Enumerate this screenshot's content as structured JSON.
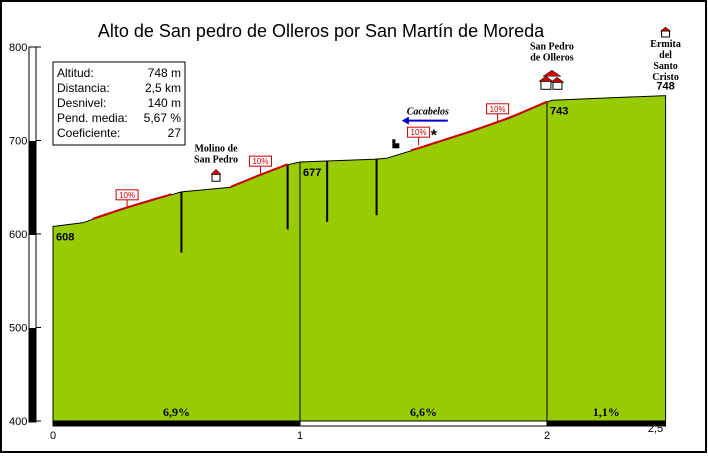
{
  "chart_data": {
    "type": "area",
    "title": "Alto de San pedro de Olleros por San Martín de Moreda",
    "xlim": [
      0,
      2.5
    ],
    "ylim": [
      400,
      800
    ],
    "x_ticks": [
      "0",
      "1",
      "2",
      "2,5"
    ],
    "y_ticks": [
      "400",
      "500",
      "600",
      "700",
      "800"
    ],
    "fill_color": "#99cc00",
    "steep_color": "#cc0000",
    "profile": [
      {
        "x": 0.0,
        "y": 608
      },
      {
        "x": 0.12,
        "y": 612
      },
      {
        "x": 0.3,
        "y": 628
      },
      {
        "x": 0.48,
        "y": 642
      },
      {
        "x": 0.52,
        "y": 645
      },
      {
        "x": 0.72,
        "y": 650
      },
      {
        "x": 0.85,
        "y": 664
      },
      {
        "x": 0.95,
        "y": 674
      },
      {
        "x": 1.0,
        "y": 677
      },
      {
        "x": 1.3,
        "y": 680
      },
      {
        "x": 1.35,
        "y": 681
      },
      {
        "x": 1.5,
        "y": 693
      },
      {
        "x": 1.7,
        "y": 710
      },
      {
        "x": 1.85,
        "y": 724
      },
      {
        "x": 2.0,
        "y": 741
      },
      {
        "x": 2.02,
        "y": 743
      },
      {
        "x": 2.2,
        "y": 745
      },
      {
        "x": 2.48,
        "y": 748
      }
    ],
    "steep_sections": [
      {
        "x1": 0.16,
        "x2": 0.48
      },
      {
        "x1": 0.72,
        "x2": 0.95
      },
      {
        "x1": 1.45,
        "x2": 2.0
      }
    ],
    "percent_tags": [
      {
        "label": "10%",
        "x": 0.3,
        "y": 628
      },
      {
        "label": "10%",
        "x": 0.84,
        "y": 664
      },
      {
        "label": "10%",
        "x": 1.48,
        "y": 695
      },
      {
        "label": "10%",
        "x": 1.8,
        "y": 720
      }
    ],
    "elevation_labels": [
      {
        "label": "608",
        "x": 0.0,
        "y": 608
      },
      {
        "label": "677",
        "x": 1.0,
        "y": 677
      },
      {
        "label": "743",
        "x": 2.0,
        "y": 743
      },
      {
        "label": "748",
        "x": 2.48,
        "y": 748
      }
    ],
    "km_dividers": [
      1,
      2
    ],
    "side_branches": [
      {
        "x": 0.52,
        "ybottom": 580
      },
      {
        "x": 0.95,
        "ybottom": 605
      },
      {
        "x": 1.11,
        "ybottom": 613
      },
      {
        "x": 1.31,
        "ybottom": 620
      }
    ],
    "segments": [
      {
        "label": "6,9%",
        "x1": 0,
        "x2": 1,
        "style": "black"
      },
      {
        "label": "6,6%",
        "x1": 1,
        "x2": 2,
        "style": "white"
      },
      {
        "label": "1,1%",
        "x1": 2,
        "x2": 2.5,
        "style": "black"
      }
    ],
    "places": [
      {
        "lines": [
          "Molino de",
          "San Pedro"
        ],
        "x": 0.66,
        "y": 650,
        "icon": "house-icon"
      },
      {
        "lines": [
          "San Pedro",
          "de Olleros"
        ],
        "x": 2.02,
        "y": 743,
        "icon": "village-icon"
      },
      {
        "lines": [
          "Ermita",
          "del",
          "Santo",
          "Cristo"
        ],
        "x": 2.48,
        "y": 748,
        "icon": "church-icon"
      }
    ],
    "cacabelos": {
      "label": "Cacabelos",
      "x": 1.55,
      "y": 718
    },
    "stats": [
      {
        "label": "Altitud:",
        "value": "748 m"
      },
      {
        "label": "Distancia:",
        "value": "2,5 km"
      },
      {
        "label": "Desnivel:",
        "value": "140 m"
      },
      {
        "label": "Pend. media:",
        "value": "5,67 %"
      },
      {
        "label": "Coeficiente:",
        "value": "27"
      }
    ]
  }
}
